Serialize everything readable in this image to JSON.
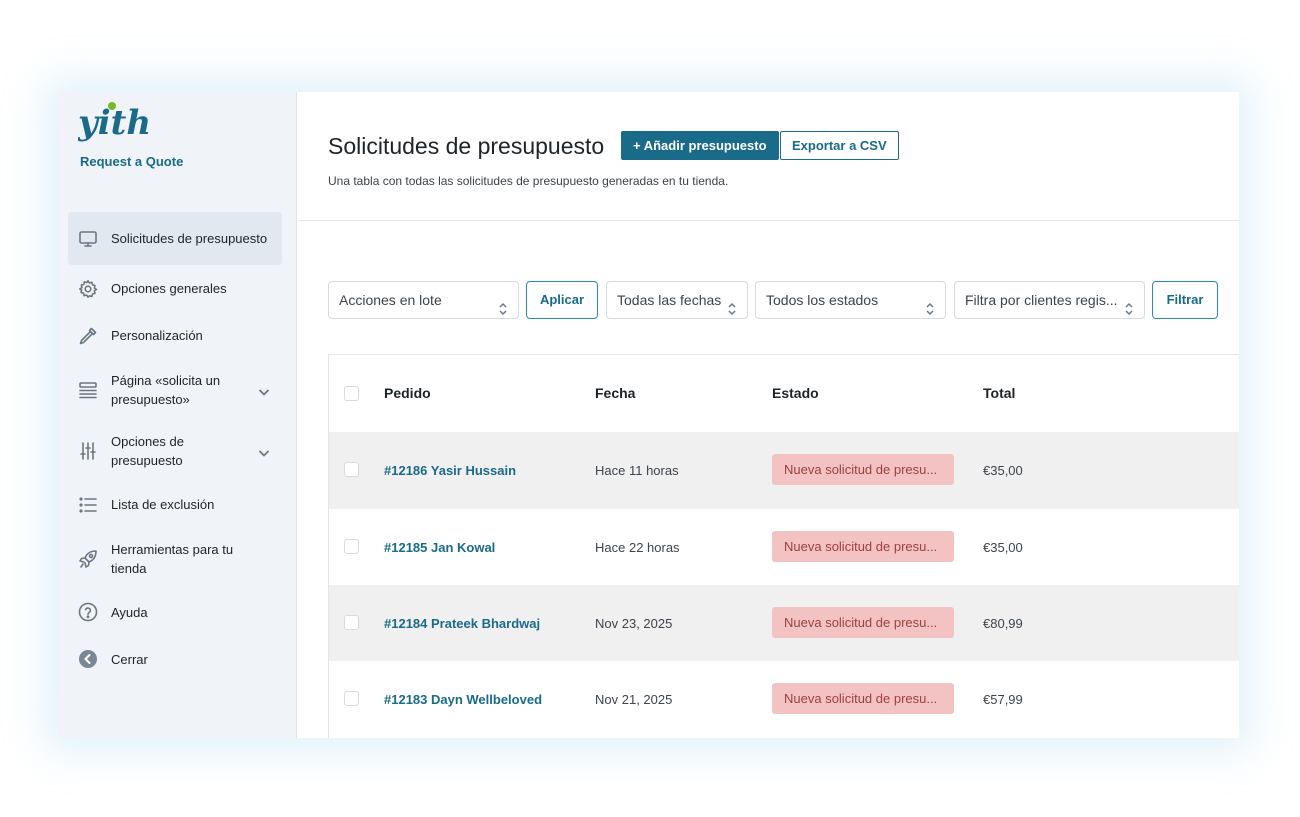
{
  "brand": {
    "logo_text": "yith",
    "name": "Request a Quote"
  },
  "sidebar": {
    "items": [
      {
        "label": "Solicitudes de presupuesto",
        "icon": "monitor-icon",
        "active": true
      },
      {
        "label": "Opciones generales",
        "icon": "gear-icon"
      },
      {
        "label": "Personalización",
        "icon": "eyedropper-icon"
      },
      {
        "label": "Página «solicita un presupuesto»",
        "icon": "list-stack-icon",
        "expandable": true
      },
      {
        "label": "Opciones de presupuesto",
        "icon": "sliders-icon",
        "expandable": true
      },
      {
        "label": "Lista de exclusión",
        "icon": "bullet-list-icon"
      },
      {
        "label": "Herramientas para tu tienda",
        "icon": "rocket-icon"
      },
      {
        "label": "Ayuda",
        "icon": "help-circle-icon"
      },
      {
        "label": "Cerrar",
        "icon": "arrow-left-circle-icon"
      }
    ]
  },
  "header": {
    "title": "Solicitudes de presupuesto",
    "add_label": "+ Añadir presupuesto",
    "export_label": "Exportar a CSV",
    "description": "Una tabla con todas las solicitudes de presupuesto generadas en tu tienda."
  },
  "filters": {
    "bulk_actions": "Acciones en lote",
    "apply_label": "Aplicar",
    "dates": "Todas las fechas",
    "statuses": "Todos los estados",
    "customers": "Filtra por clientes regis...",
    "filter_label": "Filtrar"
  },
  "table": {
    "columns": [
      "Pedido",
      "Fecha",
      "Estado",
      "Total"
    ],
    "rows": [
      {
        "order": "#12186 Yasir Hussain",
        "date": "Hace 11 horas",
        "status": "Nueva solicitud de presu...",
        "total": "€35,00"
      },
      {
        "order": "#12185 Jan Kowal",
        "date": "Hace 22 horas",
        "status": "Nueva solicitud de presu...",
        "total": "€35,00"
      },
      {
        "order": "#12184 Prateek Bhardwaj",
        "date": "Nov 23, 2025",
        "status": "Nueva solicitud de presu...",
        "total": "€80,99"
      },
      {
        "order": "#12183 Dayn Wellbeloved",
        "date": "Nov 21, 2025",
        "status": "Nueva solicitud de presu...",
        "total": "€57,99"
      }
    ]
  },
  "colors": {
    "accent": "#1a6a8a",
    "logo_green": "#7ab829",
    "badge_bg": "#f3c3c3",
    "badge_text": "#9c4040"
  }
}
